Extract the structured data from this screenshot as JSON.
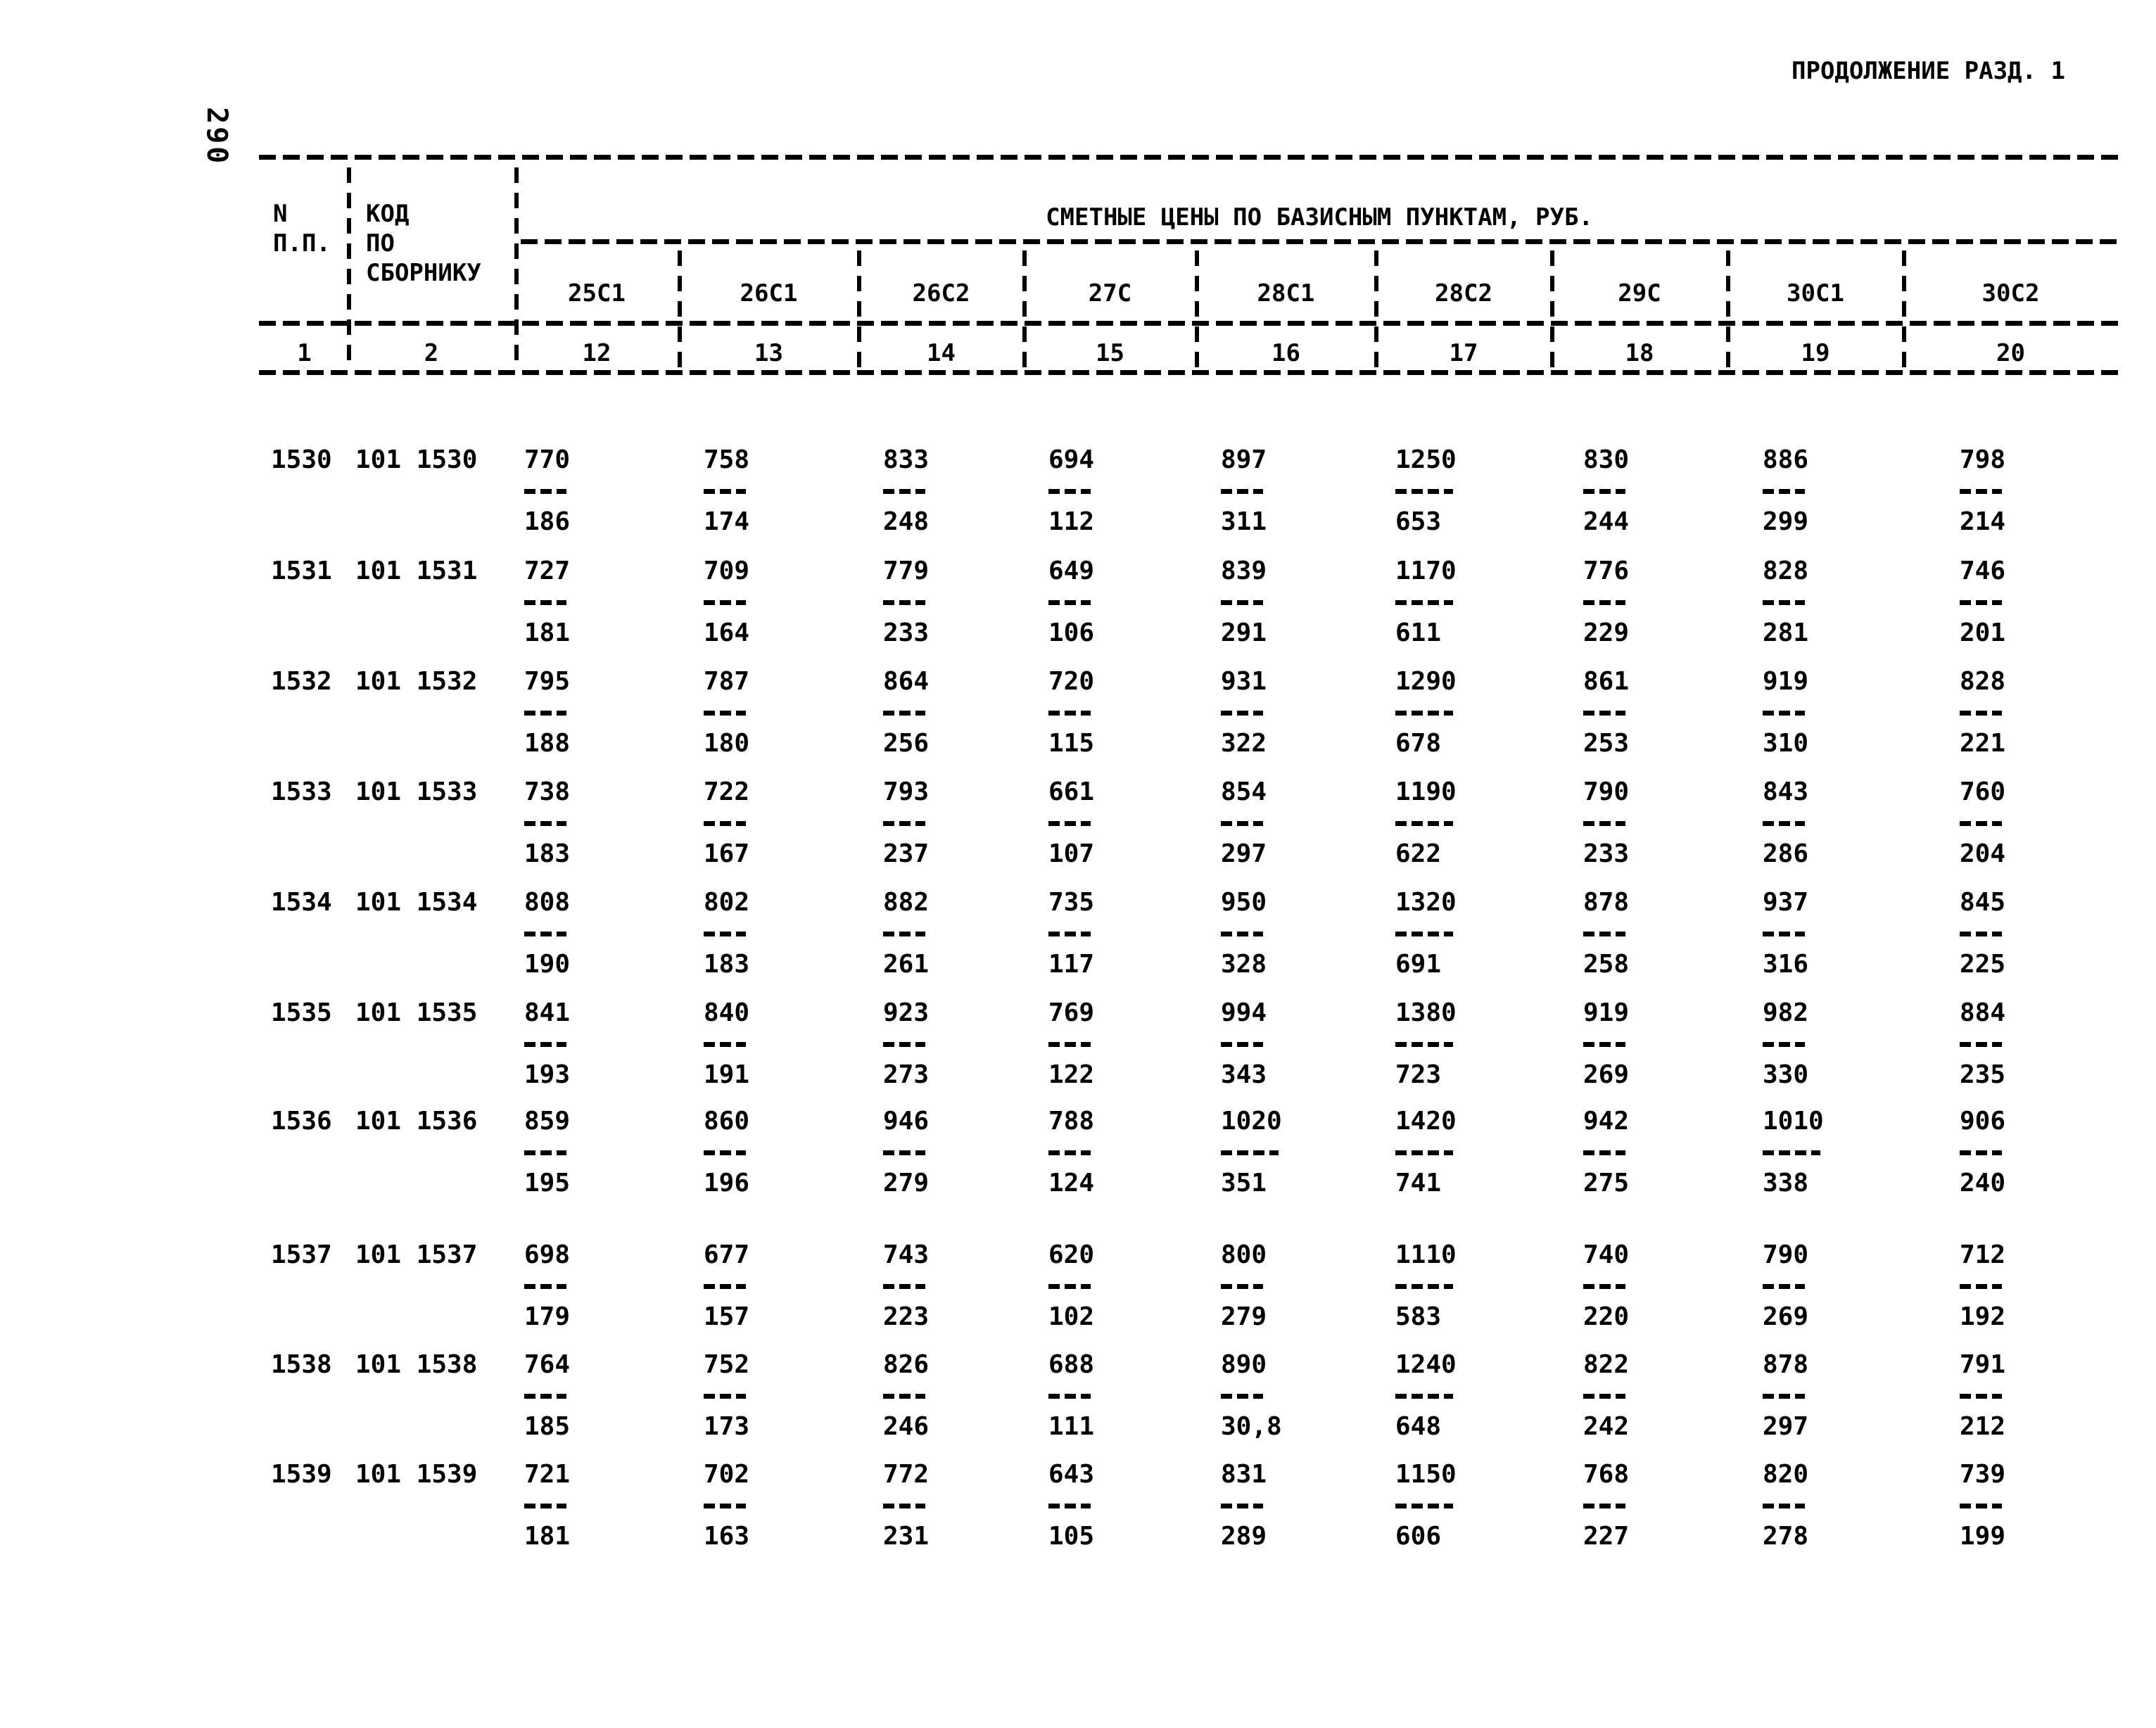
{
  "page": {
    "side_page_number": "290",
    "header_right": "ПРОДОЛЖЕНИЕ РАЗД. 1"
  },
  "table": {
    "col_np_line1": "N",
    "col_np_line2": "П.П.",
    "col_code_line1": "КОД",
    "col_code_line2": "ПО",
    "col_code_line3": "СБОРНИКУ",
    "span_header": "СМЕТНЫЕ ЦЕНЫ ПО БАЗИСНЫМ ПУНКТАМ, РУБ.",
    "base_point_columns": [
      "25С1",
      "26С1",
      "26С2",
      "27С",
      "28С1",
      "28С2",
      "29С",
      "30С1",
      "30С2"
    ],
    "column_numbers": [
      "1",
      "2",
      "12",
      "13",
      "14",
      "15",
      "16",
      "17",
      "18",
      "19",
      "20"
    ],
    "rows": [
      {
        "n": "1530",
        "code": "101 1530",
        "cells": [
          [
            "770",
            "186"
          ],
          [
            "758",
            "174"
          ],
          [
            "833",
            "248"
          ],
          [
            "694",
            "112"
          ],
          [
            "897",
            "311"
          ],
          [
            "1250",
            "653"
          ],
          [
            "830",
            "244"
          ],
          [
            "886",
            "299"
          ],
          [
            "798",
            "214"
          ]
        ]
      },
      {
        "n": "1531",
        "code": "101 1531",
        "cells": [
          [
            "727",
            "181"
          ],
          [
            "709",
            "164"
          ],
          [
            "779",
            "233"
          ],
          [
            "649",
            "106"
          ],
          [
            "839",
            "291"
          ],
          [
            "1170",
            "611"
          ],
          [
            "776",
            "229"
          ],
          [
            "828",
            "281"
          ],
          [
            "746",
            "201"
          ]
        ]
      },
      {
        "n": "1532",
        "code": "101 1532",
        "cells": [
          [
            "795",
            "188"
          ],
          [
            "787",
            "180"
          ],
          [
            "864",
            "256"
          ],
          [
            "720",
            "115"
          ],
          [
            "931",
            "322"
          ],
          [
            "1290",
            "678"
          ],
          [
            "861",
            "253"
          ],
          [
            "919",
            "310"
          ],
          [
            "828",
            "221"
          ]
        ]
      },
      {
        "n": "1533",
        "code": "101 1533",
        "cells": [
          [
            "738",
            "183"
          ],
          [
            "722",
            "167"
          ],
          [
            "793",
            "237"
          ],
          [
            "661",
            "107"
          ],
          [
            "854",
            "297"
          ],
          [
            "1190",
            "622"
          ],
          [
            "790",
            "233"
          ],
          [
            "843",
            "286"
          ],
          [
            "760",
            "204"
          ]
        ]
      },
      {
        "n": "1534",
        "code": "101 1534",
        "cells": [
          [
            "808",
            "190"
          ],
          [
            "802",
            "183"
          ],
          [
            "882",
            "261"
          ],
          [
            "735",
            "117"
          ],
          [
            "950",
            "328"
          ],
          [
            "1320",
            "691"
          ],
          [
            "878",
            "258"
          ],
          [
            "937",
            "316"
          ],
          [
            "845",
            "225"
          ]
        ]
      },
      {
        "n": "1535",
        "code": "101 1535",
        "cells": [
          [
            "841",
            "193"
          ],
          [
            "840",
            "191"
          ],
          [
            "923",
            "273"
          ],
          [
            "769",
            "122"
          ],
          [
            "994",
            "343"
          ],
          [
            "1380",
            "723"
          ],
          [
            "919",
            "269"
          ],
          [
            "982",
            "330"
          ],
          [
            "884",
            "235"
          ]
        ]
      },
      {
        "n": "1536",
        "code": "101 1536",
        "cells": [
          [
            "859",
            "195"
          ],
          [
            "860",
            "196"
          ],
          [
            "946",
            "279"
          ],
          [
            "788",
            "124"
          ],
          [
            "1020",
            "351"
          ],
          [
            "1420",
            "741"
          ],
          [
            "942",
            "275"
          ],
          [
            "1010",
            "338"
          ],
          [
            "906",
            "240"
          ]
        ]
      },
      {
        "n": "1537",
        "code": "101 1537",
        "cells": [
          [
            "698",
            "179"
          ],
          [
            "677",
            "157"
          ],
          [
            "743",
            "223"
          ],
          [
            "620",
            "102"
          ],
          [
            "800",
            "279"
          ],
          [
            "1110",
            "583"
          ],
          [
            "740",
            "220"
          ],
          [
            "790",
            "269"
          ],
          [
            "712",
            "192"
          ]
        ]
      },
      {
        "n": "1538",
        "code": "101 1538",
        "cells": [
          [
            "764",
            "185"
          ],
          [
            "752",
            "173"
          ],
          [
            "826",
            "246"
          ],
          [
            "688",
            "111"
          ],
          [
            "890",
            "30,8"
          ],
          [
            "1240",
            "648"
          ],
          [
            "822",
            "242"
          ],
          [
            "878",
            "297"
          ],
          [
            "791",
            "212"
          ]
        ]
      },
      {
        "n": "1539",
        "code": "101 1539",
        "cells": [
          [
            "721",
            "181"
          ],
          [
            "702",
            "163"
          ],
          [
            "772",
            "231"
          ],
          [
            "643",
            "105"
          ],
          [
            "831",
            "289"
          ],
          [
            "1150",
            "606"
          ],
          [
            "768",
            "227"
          ],
          [
            "820",
            "278"
          ],
          [
            "739",
            "199"
          ]
        ]
      }
    ]
  }
}
